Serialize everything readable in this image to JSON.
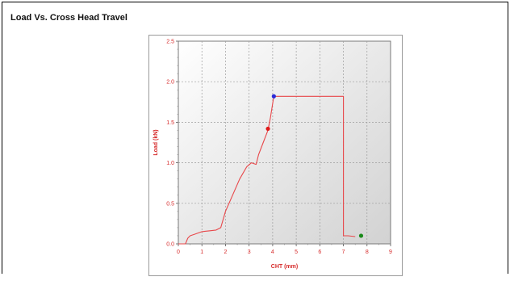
{
  "report": {
    "section_title": "Load Vs. Cross Head Travel"
  },
  "colors": {
    "curve": "#e8474a",
    "axis_text": "#d62a2a",
    "marker_peak": "#2c2cd8",
    "marker_red": "#e01818",
    "marker_green": "#1a8a1a"
  },
  "chart_data": {
    "type": "line",
    "title": "",
    "xlabel": "CHT (mm)",
    "ylabel": "Load (kN)",
    "xlim": [
      0,
      9
    ],
    "ylim": [
      0,
      2.5
    ],
    "x_ticks": [
      "0",
      "1",
      "2",
      "3",
      "4",
      "5",
      "6",
      "7",
      "8",
      "9"
    ],
    "y_ticks": [
      "0.0",
      "0.5",
      "1.0",
      "1.5",
      "2.0",
      "2.5"
    ],
    "grid": true,
    "series": [
      {
        "x": [
          0,
          0.3,
          0.4,
          0.5,
          0.7,
          1.0,
          1.3,
          1.6,
          1.8,
          2.0,
          2.3,
          2.6,
          2.9,
          3.1,
          3.3,
          3.4,
          3.6,
          3.8,
          3.9,
          4.05,
          4.05,
          7.0,
          7.0,
          7.2,
          7.5
        ],
        "y": [
          0,
          0.0,
          0.07,
          0.1,
          0.12,
          0.15,
          0.16,
          0.17,
          0.2,
          0.4,
          0.6,
          0.8,
          0.95,
          1.0,
          0.98,
          1.1,
          1.25,
          1.4,
          1.55,
          1.82,
          1.82,
          1.82,
          0.1,
          0.1,
          0.09
        ]
      }
    ],
    "markers": [
      {
        "x": 4.05,
        "y": 1.82,
        "color": "#2c2cd8"
      },
      {
        "x": 3.8,
        "y": 1.42,
        "color": "#e01818"
      },
      {
        "x": 7.75,
        "y": 0.1,
        "color": "#1a8a1a"
      }
    ]
  }
}
